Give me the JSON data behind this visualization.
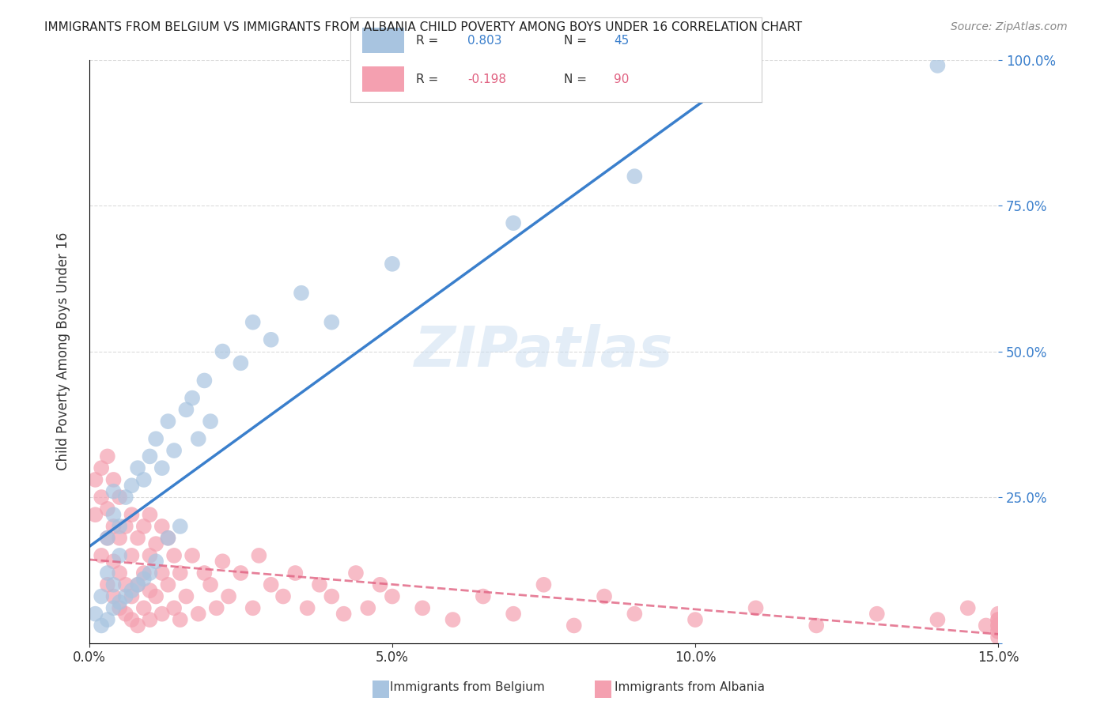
{
  "title": "IMMIGRANTS FROM BELGIUM VS IMMIGRANTS FROM ALBANIA CHILD POVERTY AMONG BOYS UNDER 16 CORRELATION CHART",
  "source": "Source: ZipAtlas.com",
  "xlabel": "",
  "ylabel": "Child Poverty Among Boys Under 16",
  "legend_label_belgium": "Immigrants from Belgium",
  "legend_label_albania": "Immigrants from Albania",
  "r_belgium": 0.803,
  "n_belgium": 45,
  "r_albania": -0.198,
  "n_albania": 90,
  "xlim": [
    0,
    0.15
  ],
  "ylim": [
    0,
    1.0
  ],
  "xticks": [
    0,
    0.05,
    0.1,
    0.15
  ],
  "xtick_labels": [
    "0.0%",
    "5.0%",
    "10.0%",
    "15.0%"
  ],
  "yticks": [
    0,
    0.25,
    0.5,
    0.75,
    1.0
  ],
  "ytick_labels": [
    "",
    "25.0%",
    "50.0%",
    "75.0%",
    "100.0%"
  ],
  "color_belgium": "#a8c4e0",
  "color_albania": "#f4a0b0",
  "line_color_belgium": "#3a7fcc",
  "line_color_albania": "#e06080",
  "watermark": "ZIPatlas",
  "background_color": "#ffffff",
  "grid_color": "#cccccc",
  "belgium_x": [
    0.001,
    0.002,
    0.002,
    0.003,
    0.003,
    0.003,
    0.004,
    0.004,
    0.004,
    0.004,
    0.005,
    0.005,
    0.005,
    0.006,
    0.006,
    0.007,
    0.007,
    0.008,
    0.008,
    0.009,
    0.009,
    0.01,
    0.01,
    0.011,
    0.011,
    0.012,
    0.013,
    0.013,
    0.014,
    0.015,
    0.016,
    0.017,
    0.018,
    0.019,
    0.02,
    0.022,
    0.025,
    0.027,
    0.03,
    0.035,
    0.04,
    0.05,
    0.07,
    0.09,
    0.14
  ],
  "belgium_y": [
    0.05,
    0.03,
    0.08,
    0.04,
    0.12,
    0.18,
    0.06,
    0.1,
    0.22,
    0.26,
    0.07,
    0.15,
    0.2,
    0.08,
    0.25,
    0.09,
    0.27,
    0.1,
    0.3,
    0.11,
    0.28,
    0.12,
    0.32,
    0.14,
    0.35,
    0.3,
    0.18,
    0.38,
    0.33,
    0.2,
    0.4,
    0.42,
    0.35,
    0.45,
    0.38,
    0.5,
    0.48,
    0.55,
    0.52,
    0.6,
    0.55,
    0.65,
    0.72,
    0.8,
    0.99
  ],
  "albania_x": [
    0.001,
    0.001,
    0.002,
    0.002,
    0.002,
    0.003,
    0.003,
    0.003,
    0.003,
    0.004,
    0.004,
    0.004,
    0.004,
    0.005,
    0.005,
    0.005,
    0.005,
    0.006,
    0.006,
    0.006,
    0.007,
    0.007,
    0.007,
    0.007,
    0.008,
    0.008,
    0.008,
    0.009,
    0.009,
    0.009,
    0.01,
    0.01,
    0.01,
    0.01,
    0.011,
    0.011,
    0.012,
    0.012,
    0.012,
    0.013,
    0.013,
    0.014,
    0.014,
    0.015,
    0.015,
    0.016,
    0.017,
    0.018,
    0.019,
    0.02,
    0.021,
    0.022,
    0.023,
    0.025,
    0.027,
    0.028,
    0.03,
    0.032,
    0.034,
    0.036,
    0.038,
    0.04,
    0.042,
    0.044,
    0.046,
    0.048,
    0.05,
    0.055,
    0.06,
    0.065,
    0.07,
    0.075,
    0.08,
    0.085,
    0.09,
    0.1,
    0.11,
    0.12,
    0.13,
    0.14,
    0.145,
    0.148,
    0.15,
    0.15,
    0.15,
    0.15,
    0.15,
    0.15,
    0.15,
    0.15
  ],
  "albania_y": [
    0.22,
    0.28,
    0.15,
    0.25,
    0.3,
    0.1,
    0.18,
    0.23,
    0.32,
    0.08,
    0.14,
    0.2,
    0.28,
    0.06,
    0.12,
    0.18,
    0.25,
    0.05,
    0.1,
    0.2,
    0.04,
    0.08,
    0.15,
    0.22,
    0.03,
    0.1,
    0.18,
    0.06,
    0.12,
    0.2,
    0.04,
    0.09,
    0.15,
    0.22,
    0.08,
    0.17,
    0.05,
    0.12,
    0.2,
    0.1,
    0.18,
    0.06,
    0.15,
    0.04,
    0.12,
    0.08,
    0.15,
    0.05,
    0.12,
    0.1,
    0.06,
    0.14,
    0.08,
    0.12,
    0.06,
    0.15,
    0.1,
    0.08,
    0.12,
    0.06,
    0.1,
    0.08,
    0.05,
    0.12,
    0.06,
    0.1,
    0.08,
    0.06,
    0.04,
    0.08,
    0.05,
    0.1,
    0.03,
    0.08,
    0.05,
    0.04,
    0.06,
    0.03,
    0.05,
    0.04,
    0.06,
    0.03,
    0.02,
    0.04,
    0.05,
    0.03,
    0.02,
    0.01,
    0.04,
    0.03
  ]
}
